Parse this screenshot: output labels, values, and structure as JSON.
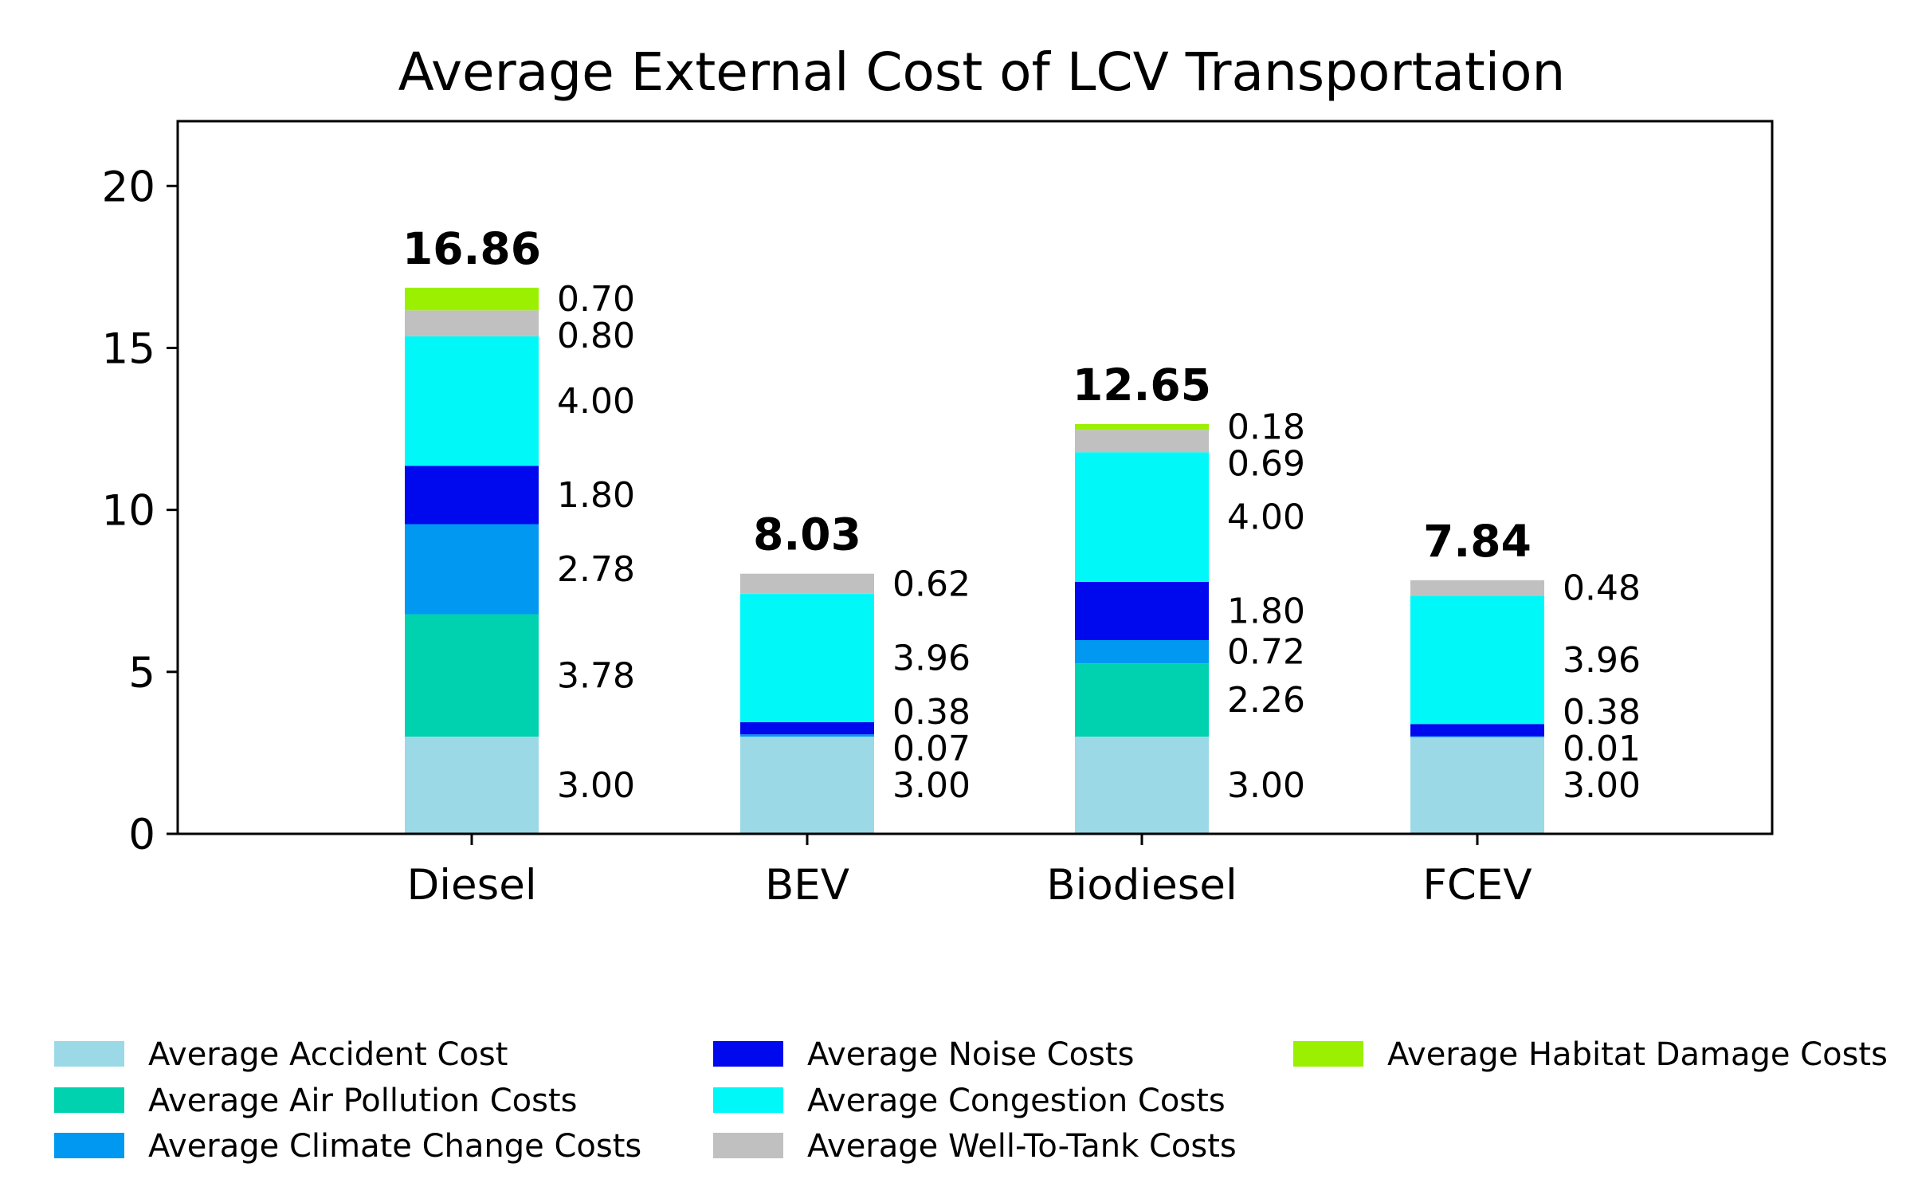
{
  "chart_data": {
    "type": "bar",
    "stacked": true,
    "title": "Average External Cost of LCV Transportation",
    "xlabel": "",
    "ylabel": "",
    "ylim": [
      0,
      22
    ],
    "yticks": [
      "0",
      "5",
      "10",
      "15",
      "20"
    ],
    "categories": [
      "Diesel",
      "BEV",
      "Biodiesel",
      "FCEV"
    ],
    "totals": [
      "16.86",
      "8.03",
      "12.65",
      "7.84"
    ],
    "series": [
      {
        "name": "Average Accident Cost",
        "color": "#9cd9e6",
        "values": [
          3.0,
          3.0,
          3.0,
          3.0
        ],
        "labels": [
          "3.00",
          "3.00",
          "3.00",
          "3.00"
        ]
      },
      {
        "name": "Average Air Pollution Costs",
        "color": "#00d2b0",
        "values": [
          3.78,
          0,
          2.26,
          0
        ],
        "labels": [
          "3.78",
          "",
          "2.26",
          ""
        ]
      },
      {
        "name": "Average Climate Change Costs",
        "color": "#0098f0",
        "values": [
          2.78,
          0.07,
          0.72,
          0.01
        ],
        "labels": [
          "2.78",
          "0.07",
          "0.72",
          "0.01"
        ]
      },
      {
        "name": "Average Noise Costs",
        "color": "#0008ee",
        "values": [
          1.8,
          0.38,
          1.8,
          0.38
        ],
        "labels": [
          "1.80",
          "0.38",
          "1.80",
          "0.38"
        ]
      },
      {
        "name": "Average Congestion Costs",
        "color": "#00f8f8",
        "values": [
          4.0,
          3.96,
          4.0,
          3.96
        ],
        "labels": [
          "4.00",
          "3.96",
          "4.00",
          "3.96"
        ]
      },
      {
        "name": "Average Well-To-Tank Costs",
        "color": "#c0c0c0",
        "values": [
          0.8,
          0.62,
          0.69,
          0.48
        ],
        "labels": [
          "0.80",
          "0.62",
          "0.69",
          "0.48"
        ]
      },
      {
        "name": "Average Habitat Damage Costs",
        "color": "#9af000",
        "values": [
          0.7,
          0,
          0.18,
          0
        ],
        "labels": [
          "0.70",
          "",
          "0.18",
          ""
        ]
      }
    ],
    "legend_position": "bottom"
  }
}
